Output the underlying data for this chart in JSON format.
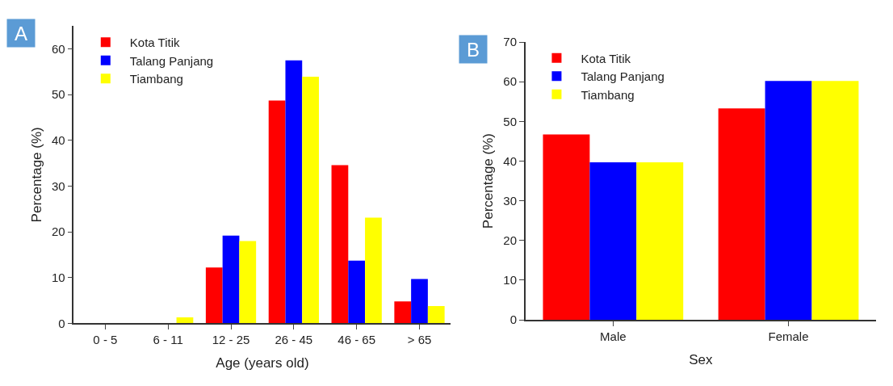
{
  "chart_data": [
    {
      "type": "bar",
      "title": "A",
      "xlabel": "Age (years old)",
      "ylabel": "Percentage (%)",
      "categories": [
        "0 - 5",
        "6 - 11",
        "12 - 25",
        "26 - 45",
        "46 - 65",
        "> 65"
      ],
      "ylim": [
        0,
        65
      ],
      "yticks": [
        0,
        10,
        20,
        30,
        40,
        50,
        60
      ],
      "legend": "top left",
      "series": [
        {
          "name": "Kota Titik",
          "color": "#ff0000",
          "values": [
            0,
            0,
            12.2,
            48.7,
            34.6,
            4.8
          ]
        },
        {
          "name": "Talang Panjang",
          "color": "#0000ff",
          "values": [
            0,
            0,
            19.2,
            57.5,
            13.7,
            9.7
          ]
        },
        {
          "name": "Tiambang",
          "color": "#ffff00",
          "values": [
            0,
            1.3,
            18.0,
            53.9,
            23.1,
            3.8
          ]
        }
      ]
    },
    {
      "type": "bar",
      "title": "B",
      "xlabel": "Sex",
      "ylabel": "Percentage (%)",
      "categories": [
        "Male",
        "Female"
      ],
      "ylim": [
        0,
        70
      ],
      "yticks": [
        0,
        10,
        20,
        30,
        40,
        50,
        60,
        70
      ],
      "legend": "top left",
      "series": [
        {
          "name": "Kota Titik",
          "color": "#ff0000",
          "values": [
            46.7,
            53.3
          ]
        },
        {
          "name": "Talang Panjang",
          "color": "#0000ff",
          "values": [
            39.7,
            60.2
          ]
        },
        {
          "name": "Tiambang",
          "color": "#ffff00",
          "values": [
            39.7,
            60.2
          ]
        }
      ]
    }
  ]
}
